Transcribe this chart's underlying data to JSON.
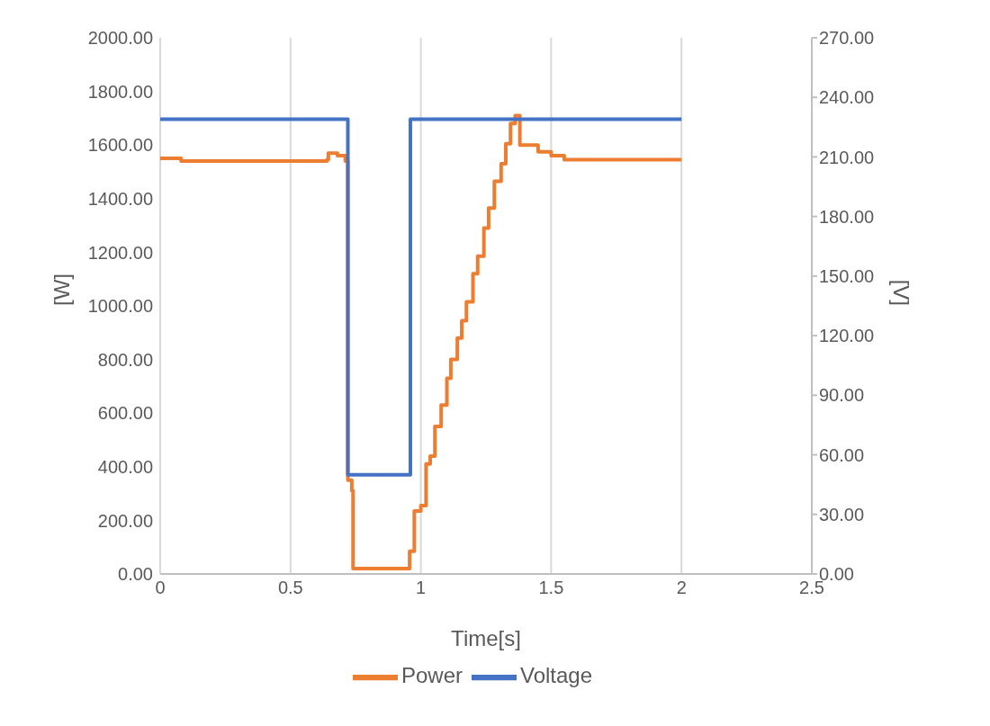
{
  "chart_data": {
    "type": "step",
    "xlabel": "Time[s]",
    "ylabel": "[W]",
    "y2label": "[V]",
    "xlim": [
      0,
      2.5
    ],
    "xticks": [
      0,
      0.5,
      1,
      1.5,
      2,
      2.5
    ],
    "ylim": [
      0,
      2000
    ],
    "yticks": [
      {
        "value": 0,
        "label": "0.00"
      },
      {
        "value": 200,
        "label": "200.00"
      },
      {
        "value": 400,
        "label": "400.00"
      },
      {
        "value": 600,
        "label": "600.00"
      },
      {
        "value": 800,
        "label": "800.00"
      },
      {
        "value": 1000,
        "label": "1000.00"
      },
      {
        "value": 1200,
        "label": "1200.00"
      },
      {
        "value": 1400,
        "label": "1400.00"
      },
      {
        "value": 1600,
        "label": "1600.00"
      },
      {
        "value": 1800,
        "label": "1800.00"
      },
      {
        "value": 2000,
        "label": "2000.00"
      }
    ],
    "y2lim": [
      0,
      270
    ],
    "y2ticks": [
      {
        "value": 0,
        "label": "0.00"
      },
      {
        "value": 30,
        "label": "30.00"
      },
      {
        "value": 60,
        "label": "60.00"
      },
      {
        "value": 90,
        "label": "90.00"
      },
      {
        "value": 120,
        "label": "120.00"
      },
      {
        "value": 150,
        "label": "150.00"
      },
      {
        "value": 180,
        "label": "180.00"
      },
      {
        "value": 210,
        "label": "210.00"
      },
      {
        "value": 240,
        "label": "240.00"
      },
      {
        "value": 270,
        "label": "270.00"
      }
    ],
    "grid": true,
    "legend": "bottom",
    "marker": "none",
    "line_style": "solid",
    "series": [
      {
        "name": "Power",
        "color": "#ed7d31",
        "x": [
          0,
          0.08,
          0.64,
          0.645,
          0.68,
          0.71,
          0.72,
          0.735,
          0.74,
          0.957,
          0.975,
          1.0,
          1.02,
          1.036,
          1.054,
          1.078,
          1.1,
          1.115,
          1.14,
          1.157,
          1.175,
          1.2,
          1.218,
          1.242,
          1.26,
          1.282,
          1.308,
          1.326,
          1.344,
          1.362,
          1.38,
          1.45,
          1.5,
          1.55,
          2.0
        ],
        "values": [
          1550,
          1540,
          1545,
          1570,
          1560,
          1540,
          350,
          310,
          20,
          85,
          235,
          255,
          410,
          440,
          550,
          630,
          730,
          800,
          880,
          945,
          1015,
          1120,
          1185,
          1290,
          1365,
          1465,
          1530,
          1605,
          1680,
          1710,
          1600,
          1575,
          1560,
          1545,
          1545
        ]
      },
      {
        "name": "Voltage",
        "color": "#4472c4",
        "axis": "y2",
        "x": [
          0,
          0.72,
          0.96,
          2.0
        ],
        "values": [
          229,
          50,
          229,
          229
        ]
      }
    ]
  }
}
